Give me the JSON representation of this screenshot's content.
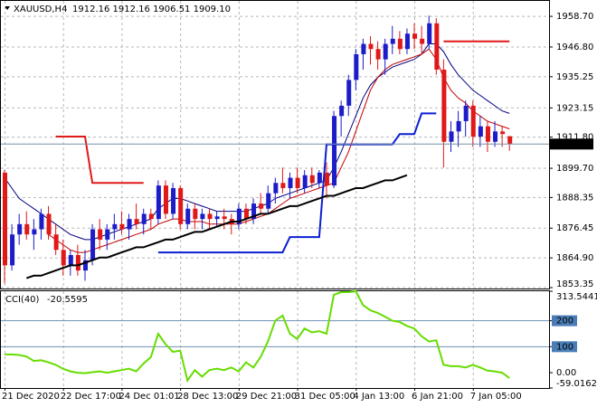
{
  "chart_data": [
    {
      "type": "candlestick",
      "title": "XAUUSD,H4",
      "subtitle": "1912.16 1912.16 1906.51 1909.10",
      "categories": [
        "21 Dec 2020",
        null,
        null,
        null,
        null,
        null,
        null,
        null,
        "22 Dec 17:00",
        null,
        null,
        null,
        null,
        null,
        null,
        null,
        "24 Dec 01:01",
        null,
        null,
        null,
        null,
        null,
        null,
        null,
        "28 Dec 13:00",
        null,
        null,
        null,
        null,
        null,
        null,
        null,
        "29 Dec 21:00",
        null,
        null,
        null,
        null,
        null,
        null,
        null,
        "31 Dec 05:00",
        null,
        null,
        null,
        null,
        null,
        null,
        null,
        "4 Jan 13:00",
        null,
        null,
        null,
        null,
        null,
        null,
        null,
        "6 Jan 21:00",
        null,
        null,
        null,
        null,
        null,
        null,
        null,
        "7 Jan 05:00",
        null,
        null,
        null,
        null,
        null
      ],
      "open": [
        1898,
        1862,
        1874,
        1878,
        1874,
        1876,
        1882,
        1874,
        1868,
        1862,
        1866,
        1860,
        1864,
        1876,
        1872,
        1876,
        1878,
        1876,
        1880,
        1878,
        1882,
        1880,
        1893,
        1882,
        1892,
        1878,
        1884,
        1880,
        1882,
        1880,
        1881,
        1880,
        1878,
        1884,
        1880,
        1886,
        1884,
        1890,
        1894,
        1892,
        1896,
        1892,
        1897,
        1894,
        1898,
        1893,
        1920,
        1924,
        1934,
        1944,
        1948,
        1946,
        1942,
        1948,
        1950,
        1946,
        1952,
        1950,
        1948,
        1956,
        1938,
        1910,
        1914,
        1918,
        1924,
        1912,
        1916,
        1910,
        1914,
        1912.16
      ],
      "high": [
        1899,
        1878,
        1882,
        1883,
        1880,
        1884,
        1885,
        1878,
        1872,
        1868,
        1870,
        1868,
        1878,
        1880,
        1878,
        1882,
        1883,
        1882,
        1886,
        1884,
        1884,
        1895,
        1895,
        1894,
        1893,
        1886,
        1886,
        1884,
        1884,
        1883,
        1884,
        1882,
        1886,
        1886,
        1888,
        1890,
        1893,
        1896,
        1900,
        1898,
        1900,
        1899,
        1900,
        1899,
        1902,
        1922,
        1926,
        1936,
        1946,
        1950,
        1951,
        1949,
        1950,
        1955,
        1953,
        1954,
        1956,
        1955,
        1959,
        1958,
        1942,
        1918,
        1922,
        1926,
        1926,
        1920,
        1918,
        1918,
        1916,
        1912.16
      ],
      "low": [
        1855,
        1860,
        1870,
        1872,
        1868,
        1872,
        1872,
        1866,
        1858,
        1858,
        1858,
        1856,
        1862,
        1868,
        1868,
        1872,
        1874,
        1872,
        1876,
        1874,
        1876,
        1878,
        1880,
        1880,
        1876,
        1876,
        1876,
        1876,
        1876,
        1877,
        1876,
        1874,
        1876,
        1878,
        1878,
        1882,
        1882,
        1886,
        1890,
        1888,
        1890,
        1890,
        1892,
        1892,
        1888,
        1892,
        1912,
        1920,
        1930,
        1938,
        1940,
        1938,
        1936,
        1944,
        1944,
        1944,
        1946,
        1944,
        1946,
        1936,
        1900,
        1906,
        1908,
        1912,
        1908,
        1908,
        1906,
        1908,
        1908,
        1906.51
      ],
      "close": [
        1862,
        1874,
        1878,
        1874,
        1876,
        1882,
        1874,
        1868,
        1862,
        1866,
        1860,
        1864,
        1876,
        1872,
        1876,
        1878,
        1876,
        1880,
        1878,
        1882,
        1880,
        1893,
        1882,
        1892,
        1878,
        1884,
        1880,
        1882,
        1880,
        1881,
        1880,
        1878,
        1884,
        1880,
        1886,
        1884,
        1890,
        1894,
        1892,
        1896,
        1892,
        1897,
        1894,
        1898,
        1893,
        1920,
        1924,
        1934,
        1944,
        1948,
        1946,
        1942,
        1948,
        1950,
        1946,
        1952,
        1950,
        1948,
        1956,
        1938,
        1910,
        1914,
        1918,
        1924,
        1912,
        1916,
        1910,
        1914,
        1913,
        1909.1
      ],
      "up_color": "#1c1cc8",
      "down_color": "#e01818",
      "last_label": "1909.10",
      "series": [
        {
          "color": "#000080",
          "width": 1,
          "values": [
            1896,
            1892,
            1888,
            1886,
            1884,
            1882,
            1880,
            1878,
            1876,
            1874,
            1873,
            1872,
            1872,
            1873,
            1874,
            1875,
            1876,
            1877,
            1878,
            1879,
            1880,
            1884,
            1886,
            1888,
            1888,
            1887,
            1886,
            1885,
            1884,
            1883,
            1883,
            1883,
            1883,
            1883,
            1884,
            1885,
            1886,
            1888,
            1889,
            1890,
            1891,
            1892,
            1893,
            1894,
            1895,
            1900,
            1906,
            1913,
            1920,
            1927,
            1932,
            1935,
            1937,
            1939,
            1940,
            1941,
            1942,
            1944,
            1948,
            1948,
            1945,
            1940,
            1936,
            1933,
            1930,
            1928,
            1926,
            1924,
            1922,
            1921
          ]
        },
        {
          "color": "#c00000",
          "width": 1,
          "values": [
            null,
            null,
            null,
            null,
            null,
            null,
            1874,
            1872,
            1870,
            1868,
            1867,
            1867,
            1868,
            1869,
            1870,
            1871,
            1872,
            1873,
            1874,
            1875,
            1876,
            1878,
            1879,
            1880,
            1880,
            1879,
            1879,
            1879,
            1878,
            1878,
            1878,
            1878,
            1878,
            1879,
            1880,
            1881,
            1882,
            1884,
            1886,
            1888,
            1889,
            1890,
            1891,
            1892,
            1893,
            1894,
            1900,
            1906,
            1914,
            1922,
            1930,
            1935,
            1938,
            1940,
            1941,
            1942,
            1943,
            1944,
            1946,
            1942,
            1935,
            1930,
            1927,
            1925,
            1922,
            1920,
            1918,
            1917,
            1916,
            1915
          ]
        },
        {
          "color": "#0a1ed2",
          "width": 2,
          "values": [
            null,
            null,
            null,
            null,
            null,
            null,
            null,
            null,
            null,
            null,
            null,
            null,
            null,
            null,
            null,
            null,
            null,
            null,
            null,
            null,
            null,
            1867,
            1867,
            1867,
            1867,
            1867,
            1867,
            1867,
            1867,
            1867,
            1867,
            1867,
            1867,
            1867,
            1867,
            1867,
            1867,
            1867,
            1867,
            1873,
            1873,
            1873,
            1873,
            1873,
            1909,
            1909,
            1909,
            1909,
            1909,
            1909,
            1909,
            1909,
            1909,
            1909,
            1913,
            1913,
            1913,
            1921,
            1921,
            1921,
            null,
            null,
            null,
            null,
            null,
            null,
            null,
            null,
            null,
            null
          ]
        },
        {
          "color": "#e01818",
          "width": 2,
          "values": [
            null,
            null,
            null,
            null,
            null,
            null,
            null,
            1912,
            1912,
            1912,
            1912,
            1912,
            1894,
            1894,
            1894,
            1894,
            1894,
            1894,
            1894,
            1894,
            null,
            null,
            null,
            null,
            null,
            null,
            null,
            null,
            null,
            null,
            null,
            null,
            null,
            null,
            null,
            null,
            null,
            null,
            null,
            null,
            null,
            null,
            null,
            null,
            null,
            null,
            null,
            null,
            null,
            null,
            null,
            null,
            null,
            null,
            null,
            null,
            null,
            null,
            null,
            null,
            1949,
            1949,
            1949,
            1949,
            1949,
            1949,
            1949,
            1949,
            1949,
            1949
          ]
        },
        {
          "color": "#000000",
          "width": 2,
          "values": [
            null,
            null,
            null,
            1857,
            1858,
            1858,
            1859,
            1860,
            1861,
            1862,
            1862,
            1863,
            1864,
            1865,
            1865,
            1866,
            1867,
            1868,
            1869,
            1869,
            1870,
            1871,
            1872,
            1872,
            1873,
            1874,
            1875,
            1875,
            1876,
            1877,
            1878,
            1879,
            1879,
            1880,
            1881,
            1882,
            1882,
            1883,
            1884,
            1885,
            1885,
            1886,
            1887,
            1888,
            1889,
            1889,
            1890,
            1891,
            1892,
            1892,
            1893,
            1894,
            1895,
            1895,
            1896,
            1897,
            null,
            null,
            null,
            null,
            null,
            null,
            null,
            null,
            null,
            null,
            null,
            null,
            null,
            null
          ]
        }
      ],
      "ylim": [
        1853.0,
        1964.7
      ],
      "yticks": [
        {
          "value": 1958.7,
          "label": "1958.70"
        },
        {
          "value": 1946.8,
          "label": "1946.80"
        },
        1935.25,
        1923.15,
        {
          "value": 1911.8,
          "label": "1911.80"
        },
        {
          "value": 1899.7,
          "label": "1899.70"
        },
        1888.35,
        1876.45,
        {
          "value": 1864.9,
          "label": "1864.90"
        },
        1853.35
      ],
      "grid": true
    },
    {
      "type": "line",
      "title": "CCI(40)",
      "color": "#66dd00",
      "values": [
        70,
        70,
        68,
        62,
        45,
        48,
        40,
        30,
        15,
        5,
        0,
        -2,
        2,
        5,
        0,
        5,
        10,
        15,
        5,
        35,
        60,
        150,
        110,
        80,
        85,
        -30,
        10,
        -15,
        10,
        15,
        10,
        20,
        5,
        40,
        20,
        60,
        120,
        200,
        220,
        150,
        130,
        170,
        155,
        160,
        150,
        300,
        310,
        310,
        313.5,
        260,
        240,
        230,
        215,
        200,
        195,
        180,
        170,
        140,
        120,
        125,
        30,
        25,
        25,
        20,
        30,
        20,
        8,
        5,
        0,
        -20.5595
      ],
      "ylim": [
        -59.0162,
        313.5441
      ],
      "yticks": [
        313.5441,
        200,
        100,
        {
          "value": 0,
          "label": "0.00"
        },
        -59.0162
      ],
      "levels": [
        200,
        100
      ]
    }
  ]
}
